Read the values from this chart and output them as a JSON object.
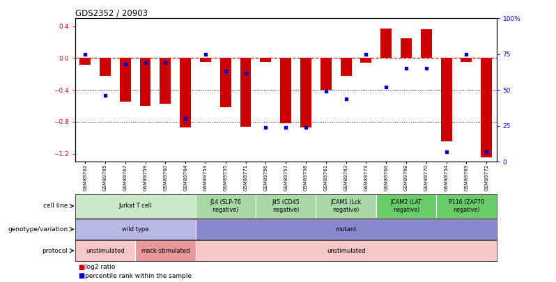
{
  "title": "GDS2352 / 20903",
  "samples": [
    "GSM89762",
    "GSM89765",
    "GSM89767",
    "GSM89759",
    "GSM89760",
    "GSM89764",
    "GSM89753",
    "GSM89755",
    "GSM89771",
    "GSM89756",
    "GSM89757",
    "GSM89758",
    "GSM89761",
    "GSM89763",
    "GSM89773",
    "GSM89766",
    "GSM89768",
    "GSM89770",
    "GSM89754",
    "GSM89769",
    "GSM89772"
  ],
  "log2_ratio": [
    -0.08,
    -0.22,
    -0.55,
    -0.6,
    -0.57,
    -0.87,
    -0.05,
    -0.62,
    -0.86,
    -0.05,
    -0.82,
    -0.87,
    -0.4,
    -0.22,
    -0.06,
    0.37,
    0.25,
    0.36,
    -1.05,
    -0.05,
    -1.25
  ],
  "percentile": [
    75,
    46,
    68,
    69,
    69,
    30,
    75,
    63,
    62,
    24,
    24,
    24,
    49,
    44,
    75,
    52,
    65,
    65,
    7,
    75,
    7
  ],
  "ylim_left": [
    -1.3,
    0.5
  ],
  "ylim_right": [
    0,
    100
  ],
  "yticks_left": [
    -1.2,
    -0.8,
    -0.4,
    0.0,
    0.4
  ],
  "yticks_right": [
    0,
    25,
    50,
    75,
    100
  ],
  "cell_line_groups": [
    {
      "label": "Jurkat T cell",
      "start": 0,
      "end": 6,
      "color": "#c8e8c8"
    },
    {
      "label": "J14 (SLP-76\nnegative)",
      "start": 6,
      "end": 9,
      "color": "#a8d8a8"
    },
    {
      "label": "J45 (CD45\nnegative)",
      "start": 9,
      "end": 12,
      "color": "#a8d8a8"
    },
    {
      "label": "JCAM1 (Lck\nnegative)",
      "start": 12,
      "end": 15,
      "color": "#a8d8a8"
    },
    {
      "label": "JCAM2 (LAT\nnegative)",
      "start": 15,
      "end": 18,
      "color": "#68cc68"
    },
    {
      "label": "P116 (ZAP70\nnegative)",
      "start": 18,
      "end": 21,
      "color": "#68cc68"
    }
  ],
  "genotype_groups": [
    {
      "label": "wild type",
      "start": 0,
      "end": 6,
      "color": "#b8b8e8"
    },
    {
      "label": "mutant",
      "start": 6,
      "end": 21,
      "color": "#8888cc"
    }
  ],
  "protocol_groups": [
    {
      "label": "unstimulated",
      "start": 0,
      "end": 3,
      "color": "#f8c8c8"
    },
    {
      "label": "mock-stimulated",
      "start": 3,
      "end": 6,
      "color": "#e89898"
    },
    {
      "label": "unstimulated",
      "start": 6,
      "end": 21,
      "color": "#f8c8c8"
    }
  ],
  "bar_color": "#cc0000",
  "dot_color": "#0000cc",
  "legend_bar": "log2 ratio",
  "legend_dot": "percentile rank within the sample",
  "label_cell": "cell line",
  "label_geno": "genotype/variation",
  "label_prot": "protocol"
}
